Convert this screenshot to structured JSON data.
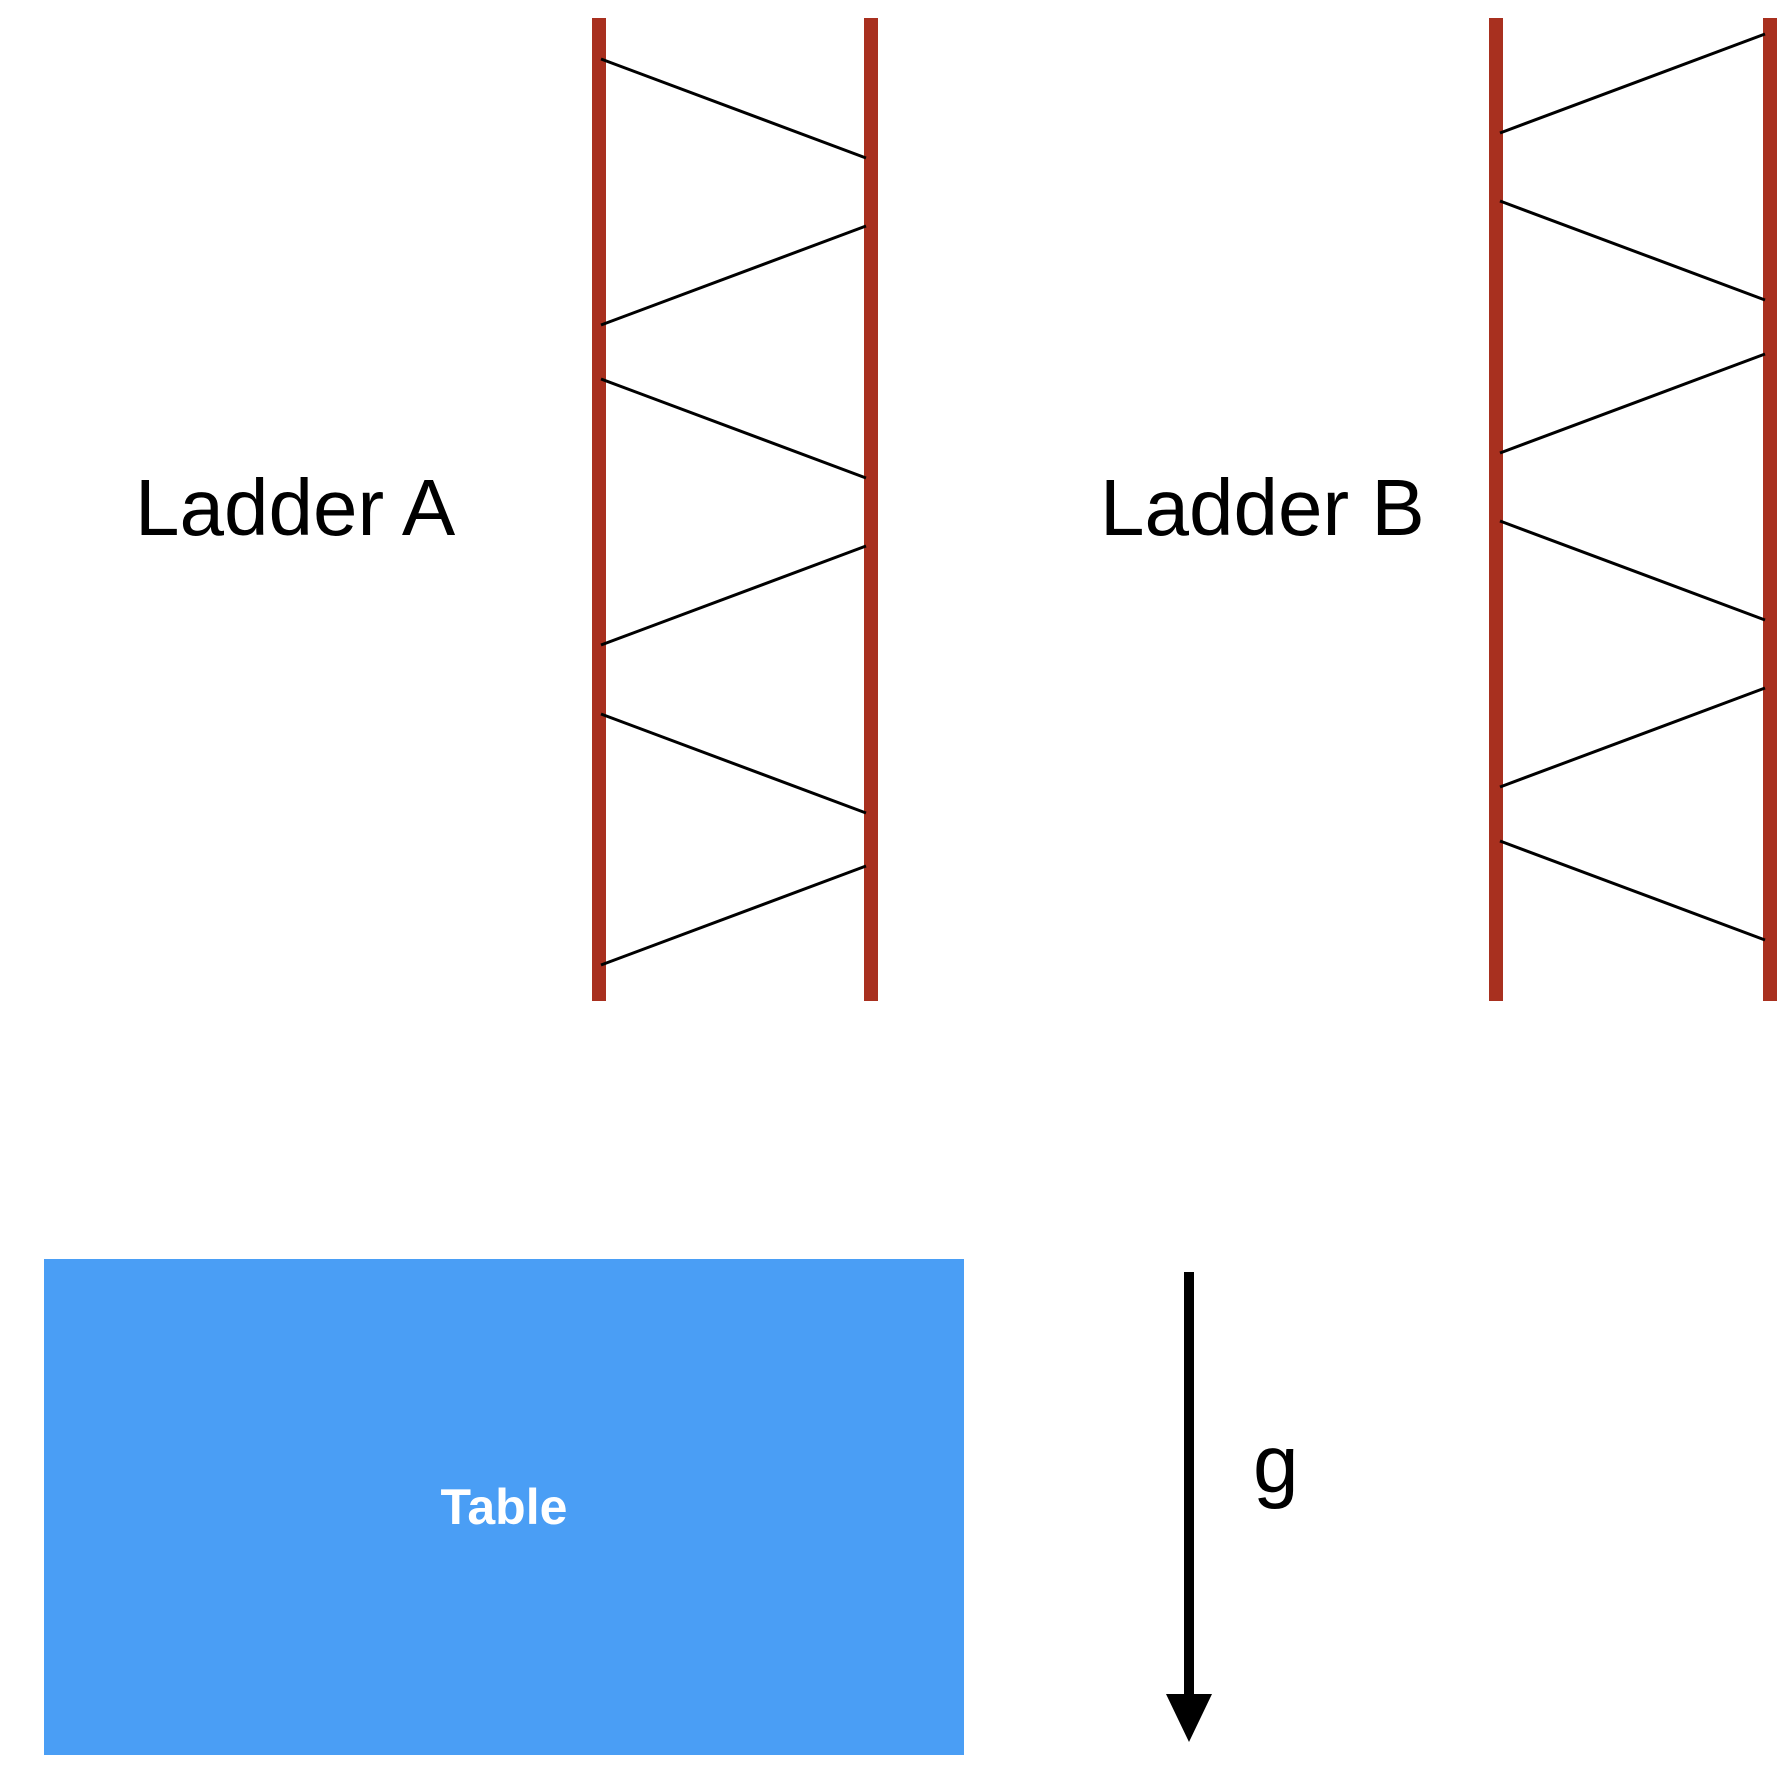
{
  "ladder_a": {
    "label": "Ladder A",
    "rung_pattern": "zigzag starting from left rail"
  },
  "ladder_b": {
    "label": "Ladder B",
    "rung_pattern": "zigzag starting from right rail"
  },
  "table": {
    "label": "Table"
  },
  "gravity": {
    "label": "g",
    "direction": "down"
  },
  "colors": {
    "rail": "#A8301F",
    "rung": "#000000",
    "table_fill": "#4A9EF5",
    "table_text": "#FFFFFF",
    "arrow": "#000000",
    "text": "#000000"
  }
}
